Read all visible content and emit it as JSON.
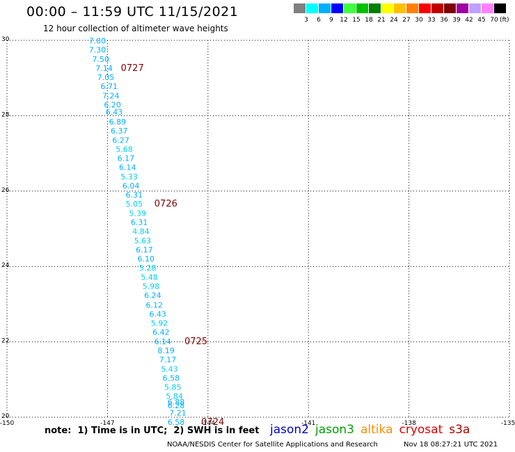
{
  "header": {
    "title": "00:00 – 11:59 UTC 11/15/2021",
    "subtitle": "12 hour collection of altimeter wave heights"
  },
  "color_scale": {
    "labels": [
      "3",
      "6",
      "9",
      "12",
      "15",
      "18",
      "21",
      "24",
      "27",
      "30",
      "33",
      "36",
      "39",
      "42",
      "45",
      "70"
    ],
    "colors": [
      "#808080",
      "#00ffff",
      "#00b0ff",
      "#0000ff",
      "#40ff40",
      "#00c000",
      "#008000",
      "#ffff00",
      "#ffc000",
      "#ff8000",
      "#ff0000",
      "#c00000",
      "#800000",
      "#a000a0",
      "#c0a0ff",
      "#ff80ff",
      "#000000"
    ],
    "unit": "(ft)"
  },
  "chart_data": {
    "type": "scatter",
    "title": "12 hour collection of altimeter wave heights",
    "xlabel": "",
    "ylabel": "",
    "xlim": [
      -150,
      -135
    ],
    "ylim": [
      20,
      30
    ],
    "x_ticks": [
      "-150",
      "-147",
      "-144",
      "-141",
      "-138",
      "-135"
    ],
    "y_ticks": [
      "20",
      "22",
      "24",
      "26",
      "28",
      "30"
    ],
    "grid": true,
    "units": "ft",
    "points": [
      {
        "lon": -147.3,
        "lat": 29.92,
        "swh": "7.80"
      },
      {
        "lon": -147.3,
        "lat": 29.68,
        "swh": "7.30"
      },
      {
        "lon": -147.2,
        "lat": 29.43,
        "swh": "7.50"
      },
      {
        "lon": -147.1,
        "lat": 29.19,
        "swh": "7.14"
      },
      {
        "lon": -147.05,
        "lat": 28.95,
        "swh": "7.05"
      },
      {
        "lon": -146.95,
        "lat": 28.71,
        "swh": "6.71"
      },
      {
        "lon": -146.9,
        "lat": 28.46,
        "swh": "7.24"
      },
      {
        "lon": -146.85,
        "lat": 28.22,
        "swh": "6.20"
      },
      {
        "lon": -146.8,
        "lat": 28.03,
        "swh": "6.43"
      },
      {
        "lon": -146.7,
        "lat": 27.77,
        "swh": "6.89"
      },
      {
        "lon": -146.65,
        "lat": 27.53,
        "swh": "6.37"
      },
      {
        "lon": -146.6,
        "lat": 27.28,
        "swh": "6.27"
      },
      {
        "lon": -146.5,
        "lat": 27.04,
        "swh": "5.68"
      },
      {
        "lon": -146.45,
        "lat": 26.8,
        "swh": "6.17"
      },
      {
        "lon": -146.4,
        "lat": 26.56,
        "swh": "6.14"
      },
      {
        "lon": -146.35,
        "lat": 26.31,
        "swh": "5.33"
      },
      {
        "lon": -146.3,
        "lat": 26.07,
        "swh": "6.04"
      },
      {
        "lon": -146.2,
        "lat": 25.83,
        "swh": "6.31"
      },
      {
        "lon": -146.2,
        "lat": 25.59,
        "swh": "5.05"
      },
      {
        "lon": -146.1,
        "lat": 25.34,
        "swh": "5.39"
      },
      {
        "lon": -146.05,
        "lat": 25.1,
        "swh": "6.31"
      },
      {
        "lon": -146.0,
        "lat": 24.86,
        "swh": "4.84"
      },
      {
        "lon": -145.95,
        "lat": 24.61,
        "swh": "5.63"
      },
      {
        "lon": -145.9,
        "lat": 24.37,
        "swh": "6.17"
      },
      {
        "lon": -145.85,
        "lat": 24.13,
        "swh": "6.10"
      },
      {
        "lon": -145.8,
        "lat": 23.89,
        "swh": "5.28"
      },
      {
        "lon": -145.75,
        "lat": 23.64,
        "swh": "5.48"
      },
      {
        "lon": -145.7,
        "lat": 23.4,
        "swh": "5.98"
      },
      {
        "lon": -145.65,
        "lat": 23.16,
        "swh": "6.24"
      },
      {
        "lon": -145.6,
        "lat": 22.91,
        "swh": "6.12"
      },
      {
        "lon": -145.5,
        "lat": 22.67,
        "swh": "6.43"
      },
      {
        "lon": -145.45,
        "lat": 22.43,
        "swh": "5.92"
      },
      {
        "lon": -145.4,
        "lat": 22.19,
        "swh": "6.42"
      },
      {
        "lon": -145.35,
        "lat": 21.94,
        "swh": "6.14"
      },
      {
        "lon": -145.25,
        "lat": 21.7,
        "swh": "8.19"
      },
      {
        "lon": -145.2,
        "lat": 21.46,
        "swh": "7.17"
      },
      {
        "lon": -145.15,
        "lat": 21.21,
        "swh": "5.43"
      },
      {
        "lon": -145.1,
        "lat": 20.97,
        "swh": "6.58"
      },
      {
        "lon": -145.05,
        "lat": 20.73,
        "swh": "5.85"
      },
      {
        "lon": -145.0,
        "lat": 20.49,
        "swh": "5.84"
      },
      {
        "lon": -144.95,
        "lat": 20.33,
        "swh": "6.88"
      },
      {
        "lon": -144.95,
        "lat": 20.24,
        "swh": "6.28"
      },
      {
        "lon": -144.9,
        "lat": 20.05,
        "swh": "7.21"
      },
      {
        "lon": -144.95,
        "lat": 19.8,
        "swh": "6.58"
      }
    ],
    "annotations": [
      {
        "lon": -146.6,
        "lat": 29.19,
        "text": "0727"
      },
      {
        "lon": -145.6,
        "lat": 25.59,
        "text": "0726"
      },
      {
        "lon": -144.7,
        "lat": 21.94,
        "text": "0725"
      },
      {
        "lon": -144.2,
        "lat": 19.8,
        "text": "0724"
      }
    ]
  },
  "footer": {
    "note": "note:  1) Time is in UTC;  2) SWH is in feet",
    "satellites": [
      {
        "name": "jason2",
        "color": "#0000cc"
      },
      {
        "name": "jason3",
        "color": "#00a000"
      },
      {
        "name": "altika",
        "color": "#ff8c00"
      },
      {
        "name": "cryosat",
        "color": "#e00000"
      },
      {
        "name": "s3a",
        "color": "#b00000"
      }
    ],
    "credit": "NOAA/NESDIS Center for Satellite Applications and Research",
    "timestamp": "Nov 18 08:27:21 UTC 2021"
  }
}
